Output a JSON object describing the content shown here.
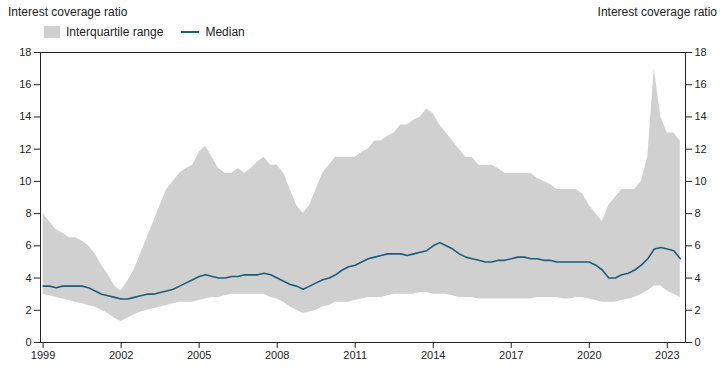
{
  "chart_data": {
    "type": "band",
    "ylabel": "Interest coverage ratio",
    "y2label": "Interest coverage ratio",
    "x": [
      1999.0,
      1999.25,
      1999.5,
      1999.75,
      2000.0,
      2000.25,
      2000.5,
      2000.75,
      2001.0,
      2001.25,
      2001.5,
      2001.75,
      2002.0,
      2002.25,
      2002.5,
      2002.75,
      2003.0,
      2003.25,
      2003.5,
      2003.75,
      2004.0,
      2004.25,
      2004.5,
      2004.75,
      2005.0,
      2005.25,
      2005.5,
      2005.75,
      2006.0,
      2006.25,
      2006.5,
      2006.75,
      2007.0,
      2007.25,
      2007.5,
      2007.75,
      2008.0,
      2008.25,
      2008.5,
      2008.75,
      2009.0,
      2009.25,
      2009.5,
      2009.75,
      2010.0,
      2010.25,
      2010.5,
      2010.75,
      2011.0,
      2011.25,
      2011.5,
      2011.75,
      2012.0,
      2012.25,
      2012.5,
      2012.75,
      2013.0,
      2013.25,
      2013.5,
      2013.75,
      2014.0,
      2014.25,
      2014.5,
      2014.75,
      2015.0,
      2015.25,
      2015.5,
      2015.75,
      2016.0,
      2016.25,
      2016.5,
      2016.75,
      2017.0,
      2017.25,
      2017.5,
      2017.75,
      2018.0,
      2018.25,
      2018.5,
      2018.75,
      2019.0,
      2019.25,
      2019.5,
      2019.75,
      2020.0,
      2020.25,
      2020.5,
      2020.75,
      2021.0,
      2021.25,
      2021.5,
      2021.75,
      2022.0,
      2022.25,
      2022.5,
      2022.75,
      2023.0,
      2023.25,
      2023.5
    ],
    "series": [
      {
        "name": "Interquartile range",
        "type": "area",
        "color": "#d0d0d0",
        "lower": [
          3.0,
          2.9,
          2.8,
          2.7,
          2.6,
          2.5,
          2.4,
          2.3,
          2.2,
          2.0,
          1.8,
          1.5,
          1.3,
          1.5,
          1.7,
          1.9,
          2.0,
          2.1,
          2.2,
          2.3,
          2.4,
          2.5,
          2.5,
          2.5,
          2.6,
          2.7,
          2.8,
          2.8,
          2.9,
          3.0,
          3.0,
          3.0,
          3.0,
          3.0,
          3.0,
          2.8,
          2.7,
          2.5,
          2.2,
          2.0,
          1.8,
          1.9,
          2.0,
          2.2,
          2.3,
          2.5,
          2.5,
          2.5,
          2.6,
          2.7,
          2.8,
          2.8,
          2.8,
          2.9,
          3.0,
          3.0,
          3.0,
          3.0,
          3.1,
          3.1,
          3.0,
          3.0,
          3.0,
          2.9,
          2.8,
          2.8,
          2.8,
          2.7,
          2.7,
          2.7,
          2.7,
          2.7,
          2.7,
          2.7,
          2.7,
          2.7,
          2.8,
          2.8,
          2.8,
          2.8,
          2.7,
          2.7,
          2.8,
          2.8,
          2.7,
          2.6,
          2.5,
          2.5,
          2.5,
          2.6,
          2.7,
          2.8,
          3.0,
          3.2,
          3.5,
          3.5,
          3.2,
          3.0,
          2.8
        ],
        "upper": [
          8.0,
          7.5,
          7.0,
          6.8,
          6.5,
          6.5,
          6.3,
          6.0,
          5.5,
          4.8,
          4.2,
          3.5,
          3.2,
          3.8,
          4.5,
          5.5,
          6.5,
          7.5,
          8.5,
          9.5,
          10.0,
          10.5,
          10.8,
          11.0,
          11.8,
          12.2,
          11.5,
          10.8,
          10.5,
          10.5,
          10.8,
          10.5,
          10.8,
          11.2,
          11.5,
          11.0,
          11.0,
          10.5,
          9.5,
          8.5,
          8.0,
          8.5,
          9.5,
          10.5,
          11.0,
          11.5,
          11.5,
          11.5,
          11.5,
          11.8,
          12.0,
          12.5,
          12.5,
          12.8,
          13.0,
          13.5,
          13.5,
          13.8,
          14.0,
          14.5,
          14.2,
          13.5,
          13.0,
          12.5,
          12.0,
          11.5,
          11.5,
          11.0,
          11.0,
          11.0,
          10.8,
          10.5,
          10.5,
          10.5,
          10.5,
          10.5,
          10.2,
          10.0,
          9.8,
          9.5,
          9.5,
          9.5,
          9.5,
          9.2,
          8.5,
          8.0,
          7.5,
          8.5,
          9.0,
          9.5,
          9.5,
          9.5,
          10.0,
          11.5,
          17.0,
          14.0,
          13.0,
          13.0,
          12.5
        ]
      },
      {
        "name": "Median",
        "type": "line",
        "color": "#1b5e7b",
        "values": [
          3.5,
          3.5,
          3.4,
          3.5,
          3.5,
          3.5,
          3.5,
          3.4,
          3.2,
          3.0,
          2.9,
          2.8,
          2.7,
          2.7,
          2.8,
          2.9,
          3.0,
          3.0,
          3.1,
          3.2,
          3.3,
          3.5,
          3.7,
          3.9,
          4.1,
          4.2,
          4.1,
          4.0,
          4.0,
          4.1,
          4.1,
          4.2,
          4.2,
          4.2,
          4.3,
          4.2,
          4.0,
          3.8,
          3.6,
          3.5,
          3.3,
          3.5,
          3.7,
          3.9,
          4.0,
          4.2,
          4.5,
          4.7,
          4.8,
          5.0,
          5.2,
          5.3,
          5.4,
          5.5,
          5.5,
          5.5,
          5.4,
          5.5,
          5.6,
          5.7,
          6.0,
          6.2,
          6.0,
          5.8,
          5.5,
          5.3,
          5.2,
          5.1,
          5.0,
          5.0,
          5.1,
          5.1,
          5.2,
          5.3,
          5.3,
          5.2,
          5.2,
          5.1,
          5.1,
          5.0,
          5.0,
          5.0,
          5.0,
          5.0,
          5.0,
          4.8,
          4.5,
          4.0,
          4.0,
          4.2,
          4.3,
          4.5,
          4.8,
          5.2,
          5.8,
          5.9,
          5.8,
          5.7,
          5.2
        ]
      }
    ],
    "xlim": [
      1998.9,
      2023.7
    ],
    "xticks": [
      1999,
      2002,
      2005,
      2008,
      2011,
      2014,
      2017,
      2020,
      2023
    ],
    "ylim": [
      0,
      18
    ],
    "yticks": [
      0,
      2,
      4,
      6,
      8,
      10,
      12,
      14,
      16,
      18
    ],
    "y2lim": [
      0,
      18
    ],
    "y2ticks": [
      0,
      2,
      4,
      6,
      8,
      10,
      12,
      14,
      16,
      18
    ],
    "legend": "upper left",
    "grid": false
  }
}
